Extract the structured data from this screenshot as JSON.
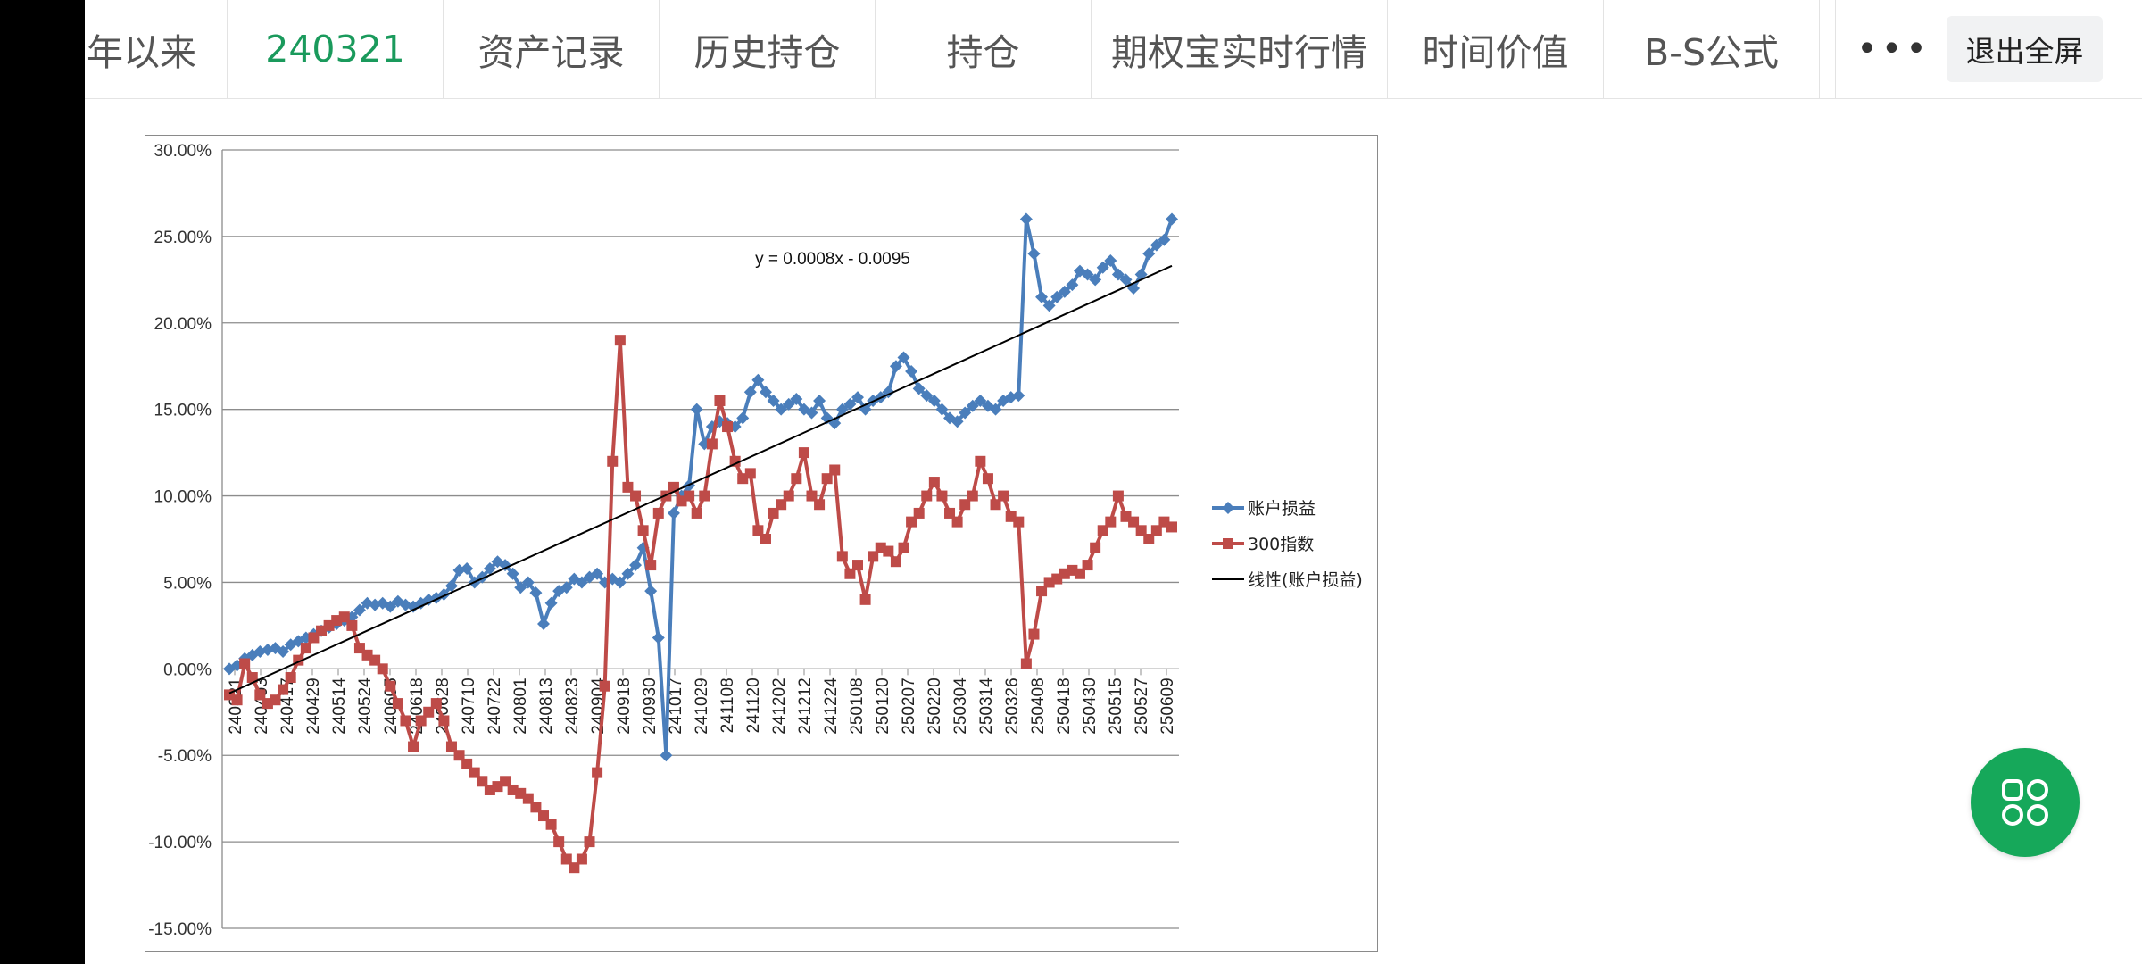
{
  "tabs": [
    {
      "label": "年以来",
      "active": false
    },
    {
      "label": "240321",
      "active": true
    },
    {
      "label": "资产记录",
      "active": false
    },
    {
      "label": "历史持仓",
      "active": false
    },
    {
      "label": "持仓",
      "active": false
    },
    {
      "label": "期权宝实时行情",
      "active": false
    },
    {
      "label": "时间价值",
      "active": false
    },
    {
      "label": "B-S公式",
      "active": false
    }
  ],
  "more_label": "•••",
  "exit_fullscreen_label": "退出全屏",
  "fab_icon": "apps-grid-icon",
  "colors": {
    "active_tab": "#1a9a5c",
    "account_series": "#4a7ebb",
    "index_series": "#be4b48",
    "trend": "#000000",
    "fab": "#16a85a"
  },
  "chart_data": {
    "type": "line",
    "title": "",
    "ylim": [
      -0.15,
      0.3
    ],
    "ytick_labels": [
      "30.00%",
      "25.00%",
      "20.00%",
      "15.00%",
      "10.00%",
      "5.00%",
      "0.00%",
      "-5.00%",
      "-10.00%",
      "-15.00%"
    ],
    "x_tick_labels": [
      "240321",
      "240403",
      "240417",
      "240429",
      "240514",
      "240524",
      "240605",
      "240618",
      "240628",
      "240710",
      "240722",
      "240801",
      "240813",
      "240823",
      "240904",
      "240918",
      "240930",
      "241017",
      "241029",
      "241108",
      "241120",
      "241202",
      "241212",
      "241224",
      "250108",
      "250120",
      "250207",
      "250220",
      "250304",
      "250314",
      "250326",
      "250408",
      "250418",
      "250430",
      "250515",
      "250527",
      "250609"
    ],
    "trendline_equation": "y = 0.0008x - 0.0095",
    "legend_position": "right",
    "grid": true,
    "series": [
      {
        "name": "账户损益",
        "marker": "diamond",
        "values": [
          0.0,
          0.002,
          0.006,
          0.008,
          0.01,
          0.011,
          0.012,
          0.01,
          0.014,
          0.016,
          0.018,
          0.02,
          0.022,
          0.024,
          0.026,
          0.028,
          0.03,
          0.034,
          0.038,
          0.037,
          0.038,
          0.036,
          0.039,
          0.037,
          0.036,
          0.038,
          0.04,
          0.041,
          0.043,
          0.048,
          0.057,
          0.058,
          0.05,
          0.053,
          0.058,
          0.062,
          0.06,
          0.055,
          0.047,
          0.05,
          0.044,
          0.026,
          0.038,
          0.045,
          0.047,
          0.052,
          0.05,
          0.053,
          0.055,
          0.05,
          0.052,
          0.05,
          0.055,
          0.06,
          0.07,
          0.045,
          0.018,
          -0.05,
          0.09,
          0.1,
          0.106,
          0.15,
          0.13,
          0.14,
          0.143,
          0.142,
          0.14,
          0.145,
          0.16,
          0.167,
          0.16,
          0.155,
          0.15,
          0.153,
          0.156,
          0.15,
          0.148,
          0.155,
          0.145,
          0.142,
          0.15,
          0.153,
          0.157,
          0.15,
          0.155,
          0.157,
          0.16,
          0.175,
          0.18,
          0.172,
          0.162,
          0.158,
          0.155,
          0.15,
          0.145,
          0.143,
          0.148,
          0.152,
          0.155,
          0.152,
          0.15,
          0.155,
          0.157,
          0.158,
          0.26,
          0.24,
          0.215,
          0.21,
          0.215,
          0.218,
          0.222,
          0.23,
          0.228,
          0.225,
          0.232,
          0.236,
          0.228,
          0.225,
          0.22,
          0.228,
          0.24,
          0.245,
          0.248,
          0.26
        ]
      },
      {
        "name": "300指数",
        "marker": "square",
        "values": [
          -0.015,
          -0.018,
          0.003,
          -0.005,
          -0.015,
          -0.02,
          -0.018,
          -0.012,
          -0.005,
          0.005,
          0.012,
          0.018,
          0.022,
          0.025,
          0.028,
          0.03,
          0.025,
          0.012,
          0.008,
          0.005,
          0.0,
          -0.01,
          -0.02,
          -0.03,
          -0.045,
          -0.03,
          -0.025,
          -0.02,
          -0.03,
          -0.045,
          -0.05,
          -0.055,
          -0.06,
          -0.065,
          -0.07,
          -0.068,
          -0.065,
          -0.07,
          -0.072,
          -0.075,
          -0.08,
          -0.085,
          -0.09,
          -0.1,
          -0.11,
          -0.115,
          -0.11,
          -0.1,
          -0.06,
          -0.01,
          0.12,
          0.19,
          0.105,
          0.1,
          0.08,
          0.06,
          0.09,
          0.1,
          0.105,
          0.097,
          0.1,
          0.09,
          0.1,
          0.13,
          0.155,
          0.14,
          0.12,
          0.11,
          0.113,
          0.08,
          0.075,
          0.09,
          0.095,
          0.1,
          0.11,
          0.125,
          0.1,
          0.095,
          0.11,
          0.115,
          0.065,
          0.055,
          0.06,
          0.04,
          0.065,
          0.07,
          0.068,
          0.062,
          0.07,
          0.085,
          0.09,
          0.1,
          0.108,
          0.1,
          0.09,
          0.085,
          0.095,
          0.1,
          0.12,
          0.11,
          0.095,
          0.1,
          0.088,
          0.085,
          0.003,
          0.02,
          0.045,
          0.05,
          0.052,
          0.055,
          0.057,
          0.055,
          0.06,
          0.07,
          0.08,
          0.085,
          0.1,
          0.088,
          0.085,
          0.08,
          0.075,
          0.08,
          0.085,
          0.082
        ]
      },
      {
        "name": "线性(账户损益)",
        "kind": "trendline"
      }
    ]
  }
}
